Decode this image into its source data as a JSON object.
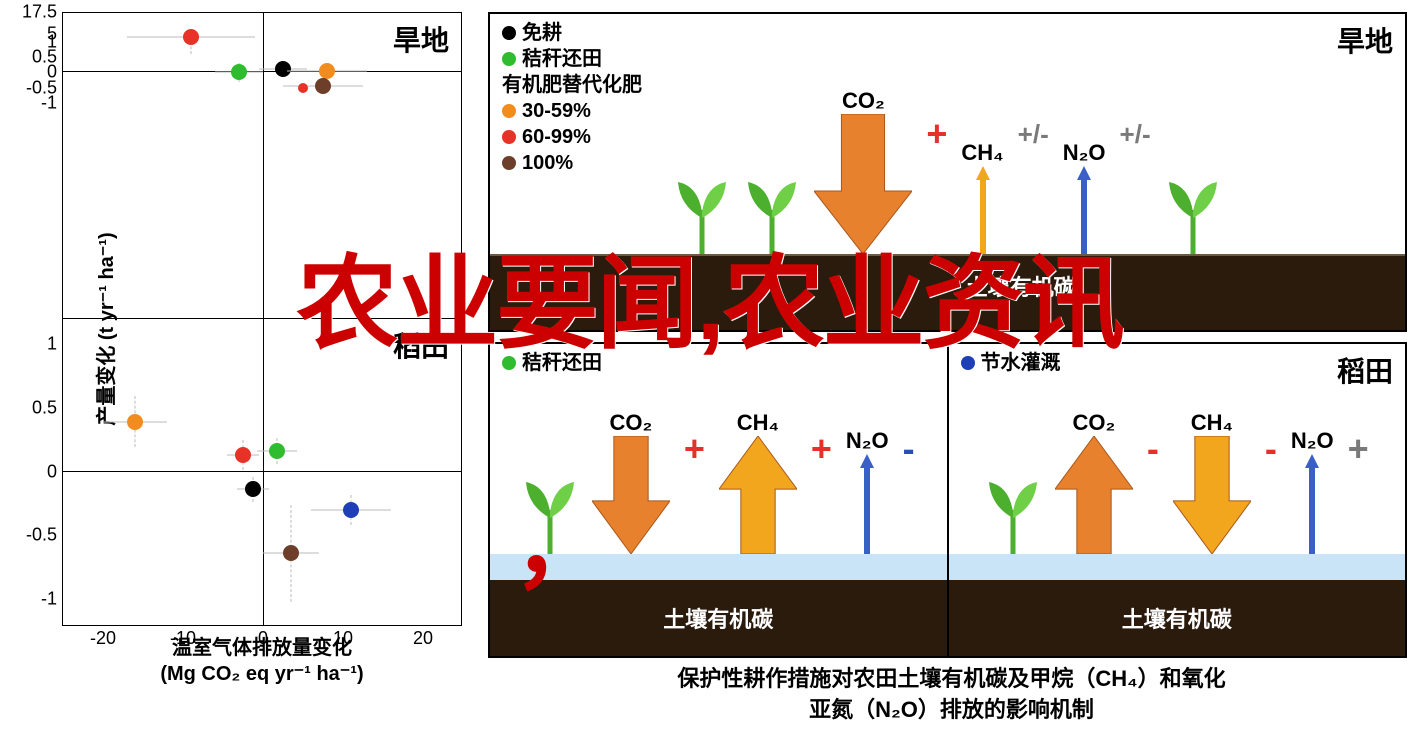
{
  "overlay": {
    "main": "农业要闻,农业资讯",
    "comma": "，"
  },
  "scatter": {
    "type": "scatter",
    "ylabel": "产量变化 (t yr⁻¹ ha⁻¹)",
    "xlabel_l1": "温室气体排放量变化",
    "xlabel_l2": "(Mg CO₂ eq yr⁻¹ ha⁻¹)",
    "top": {
      "title": "旱地",
      "xlim": [
        -25,
        25
      ],
      "ylim": [
        -8,
        18
      ],
      "xticks": [
        -20,
        -10,
        0,
        10,
        20
      ],
      "yticks": [
        -1,
        -0.5,
        0,
        0.5,
        1,
        5,
        17.5
      ],
      "ybreak": 1,
      "points": [
        {
          "x": -9,
          "y": 3.6,
          "color": "#e63227",
          "size": 16,
          "ex": 8,
          "ey": 3
        },
        {
          "x": -3,
          "y": 0,
          "color": "#2fbc2f",
          "size": 16,
          "ex": 3,
          "ey": 0.3
        },
        {
          "x": 2.5,
          "y": 0.12,
          "color": "#000000",
          "size": 16,
          "ex": 3,
          "ey": 0.2
        },
        {
          "x": 8,
          "y": 0.03,
          "color": "#f28c1e",
          "size": 16,
          "ex": 5,
          "ey": 0.2
        },
        {
          "x": 7.5,
          "y": -0.44,
          "color": "#6d3e2a",
          "size": 16,
          "ex": 5,
          "ey": 0.25
        },
        {
          "x": 5,
          "y": -0.5,
          "color": "#e63227",
          "size": 10,
          "ex": 0.5,
          "ey": 0.05
        }
      ]
    },
    "bottom": {
      "title": "稻田",
      "xlim": [
        -25,
        25
      ],
      "ylim": [
        -1.2,
        1.2
      ],
      "xticks": [
        -20,
        -10,
        0,
        10,
        20
      ],
      "yticks": [
        -1,
        -0.5,
        0,
        0.5,
        1
      ],
      "points": [
        {
          "x": -16,
          "y": 0.39,
          "color": "#f28c1e",
          "size": 16,
          "ex": 4,
          "ey": 0.2
        },
        {
          "x": -2.5,
          "y": 0.13,
          "color": "#e63227",
          "size": 16,
          "ex": 2,
          "ey": 0.12
        },
        {
          "x": 1.8,
          "y": 0.16,
          "color": "#2fbc2f",
          "size": 16,
          "ex": 2.5,
          "ey": 0.1
        },
        {
          "x": -1.3,
          "y": -0.14,
          "color": "#000000",
          "size": 16,
          "ex": 2,
          "ey": 0.1
        },
        {
          "x": 3.5,
          "y": -0.64,
          "color": "#6d3e2a",
          "size": 16,
          "ex": 3.5,
          "ey": 0.38
        },
        {
          "x": 11,
          "y": -0.3,
          "color": "#1f3fb8",
          "size": 16,
          "ex": 5,
          "ey": 0.12
        }
      ]
    }
  },
  "legend_top": {
    "items": [
      {
        "color": "#000000",
        "label": "免耕"
      },
      {
        "color": "#2fbc2f",
        "label": "秸秆还田"
      },
      {
        "label": "有机肥替代化肥",
        "header": true
      },
      {
        "color": "#f28c1e",
        "label": "30-59%"
      },
      {
        "color": "#e63227",
        "label": "60-99%"
      },
      {
        "color": "#6d3e2a",
        "label": "100%"
      }
    ]
  },
  "legend_bl": {
    "items": [
      {
        "color": "#2fbc2f",
        "label": "秸秆还田"
      }
    ]
  },
  "legend_br": {
    "items": [
      {
        "color": "#1f3fb8",
        "label": "节水灌溉"
      }
    ]
  },
  "box_top": {
    "title": "旱地",
    "co2": "CO₂",
    "ch4": "CH₄",
    "n2o": "N₂O",
    "co2_dir": "down",
    "co2_color": "#e8812e",
    "ch4_dir": "up",
    "ch4_color": "#f2a61e",
    "n2o_dir": "up",
    "n2o_color": "#3a5fc7",
    "co2_sym": "+",
    "ch4_sym": "+/-",
    "n2o_sym": "+/-",
    "soil_label": "土壤有机碳"
  },
  "box_bl": {
    "co2": "CO₂",
    "ch4": "CH₄",
    "n2o": "N₂O",
    "co2_dir": "down",
    "co2_color": "#e8812e",
    "ch4_dir": "up",
    "ch4_color": "#f2a61e",
    "n2o_dir": "up",
    "n2o_color": "#3a5fc7",
    "co2_sym": "+",
    "ch4_sym": "+",
    "n2o_sym": "-",
    "soil_label": "土壤有机碳"
  },
  "box_br": {
    "title": "稻田",
    "co2": "CO₂",
    "ch4": "CH₄",
    "n2o": "N₂O",
    "co2_dir": "up",
    "co2_color": "#e8812e",
    "ch4_dir": "down",
    "ch4_color": "#f2a61e",
    "n2o_dir": "up",
    "n2o_color": "#3a5fc7",
    "co2_sym": "-",
    "ch4_sym": "-",
    "n2o_sym": "+",
    "soil_label": "土壤有机碳"
  },
  "caption_l1": "保护性耕作措施对农田土壤有机碳及甲烷（CH₄）和氧化",
  "caption_l2": "亚氮（N₂O）排放的影响机制",
  "colors": {
    "overlay_red": "#cc0000",
    "soil": "#2a1b0d",
    "water": "#c9e3f7",
    "sprout": "#4caf2e",
    "plus_red": "#e4312a",
    "minus_blue": "#2a4fb0",
    "grey": "#7a7a7a"
  }
}
